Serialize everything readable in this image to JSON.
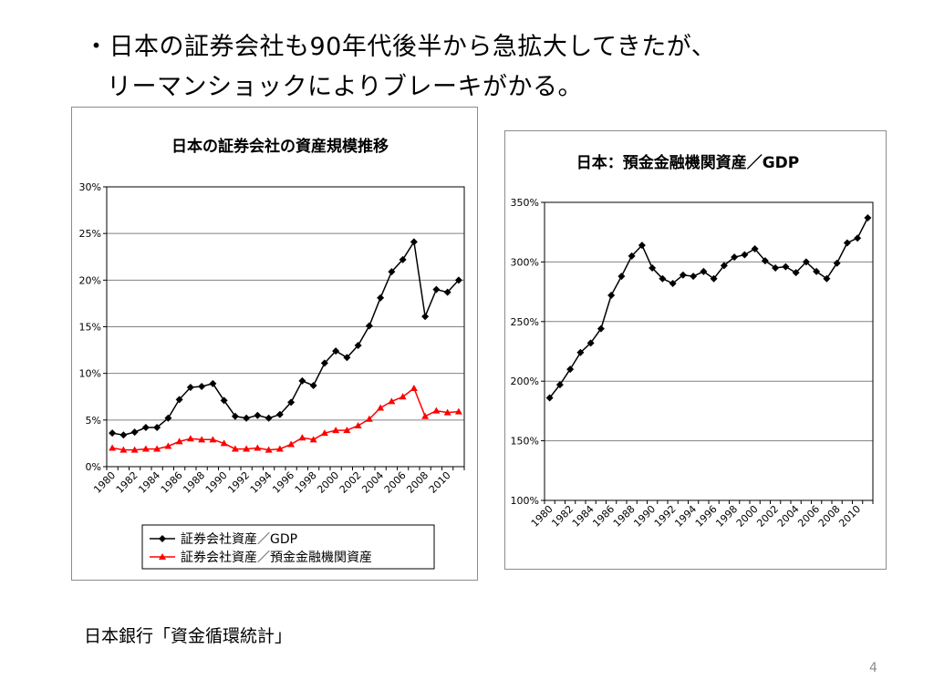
{
  "headline": {
    "line1": "・日本の証券会社も90年代後半から急拡大してきたが、",
    "line2": "リーマンショックによりブレーキがかる。"
  },
  "source": "日本銀行「資金循環統計」",
  "page_number": "4",
  "colors": {
    "black_series": "#000000",
    "red_series": "#ff0000",
    "grid": "#808080"
  },
  "chart_data": [
    {
      "type": "line",
      "title": "日本の証券会社の資産規模推移",
      "xlabel": "",
      "ylabel": "",
      "x": [
        1980,
        1981,
        1982,
        1983,
        1984,
        1985,
        1986,
        1987,
        1988,
        1989,
        1990,
        1991,
        1992,
        1993,
        1994,
        1995,
        1996,
        1997,
        1998,
        1999,
        2000,
        2001,
        2002,
        2003,
        2004,
        2005,
        2006,
        2007,
        2008,
        2009,
        2010,
        2011
      ],
      "x_tick_labels": [
        "1980",
        "1982",
        "1984",
        "1986",
        "1988",
        "1990",
        "1992",
        "1994",
        "1996",
        "1998",
        "2000",
        "2002",
        "2004",
        "2006",
        "2008",
        "2010"
      ],
      "ylim": [
        0,
        30
      ],
      "y_ticks": [
        0,
        5,
        10,
        15,
        20,
        25,
        30
      ],
      "y_tick_labels": [
        "0%",
        "5%",
        "10%",
        "15%",
        "20%",
        "25%",
        "30%"
      ],
      "grid": true,
      "legend_position": "bottom",
      "series": [
        {
          "name": "証券会社資産／GDP",
          "color": "#000000",
          "marker": "diamond",
          "values": [
            3.6,
            3.4,
            3.7,
            4.2,
            4.2,
            5.2,
            7.2,
            8.5,
            8.6,
            8.9,
            7.1,
            5.4,
            5.2,
            5.5,
            5.2,
            5.6,
            6.9,
            9.2,
            8.7,
            11.1,
            12.4,
            11.7,
            13.0,
            15.1,
            18.1,
            20.9,
            22.2,
            24.1,
            16.1,
            19.0,
            18.7,
            20.0
          ]
        },
        {
          "name": "証券会社資産／預金金融機関資産",
          "color": "#ff0000",
          "marker": "triangle",
          "values": [
            2.0,
            1.8,
            1.8,
            1.9,
            1.9,
            2.2,
            2.7,
            3.0,
            2.9,
            2.9,
            2.5,
            1.9,
            1.9,
            2.0,
            1.8,
            1.9,
            2.4,
            3.1,
            2.9,
            3.6,
            3.9,
            3.9,
            4.4,
            5.1,
            6.3,
            7.0,
            7.5,
            8.4,
            5.4,
            6.0,
            5.8,
            5.9
          ]
        }
      ]
    },
    {
      "type": "line",
      "title": "日本：預金金融機関資産／GDP",
      "xlabel": "",
      "ylabel": "",
      "x": [
        1980,
        1981,
        1982,
        1983,
        1984,
        1985,
        1986,
        1987,
        1988,
        1989,
        1990,
        1991,
        1992,
        1993,
        1994,
        1995,
        1996,
        1997,
        1998,
        1999,
        2000,
        2001,
        2002,
        2003,
        2004,
        2005,
        2006,
        2007,
        2008,
        2009,
        2010,
        2011
      ],
      "x_tick_labels": [
        "1980",
        "1982",
        "1984",
        "1986",
        "1988",
        "1990",
        "1992",
        "1994",
        "1996",
        "1998",
        "2000",
        "2002",
        "2004",
        "2006",
        "2008",
        "2010"
      ],
      "ylim": [
        100,
        350
      ],
      "y_ticks": [
        100,
        150,
        200,
        250,
        300,
        350
      ],
      "y_tick_labels": [
        "100%",
        "150%",
        "200%",
        "250%",
        "300%",
        "350%"
      ],
      "grid": true,
      "series": [
        {
          "name": "預金金融機関資産／GDP",
          "color": "#000000",
          "marker": "diamond",
          "values": [
            186,
            197,
            210,
            224,
            232,
            244,
            272,
            288,
            305,
            314,
            295,
            286,
            282,
            289,
            288,
            292,
            286,
            297,
            304,
            306,
            311,
            301,
            295,
            296,
            291,
            300,
            292,
            286,
            299,
            316,
            320,
            337
          ]
        }
      ]
    }
  ]
}
